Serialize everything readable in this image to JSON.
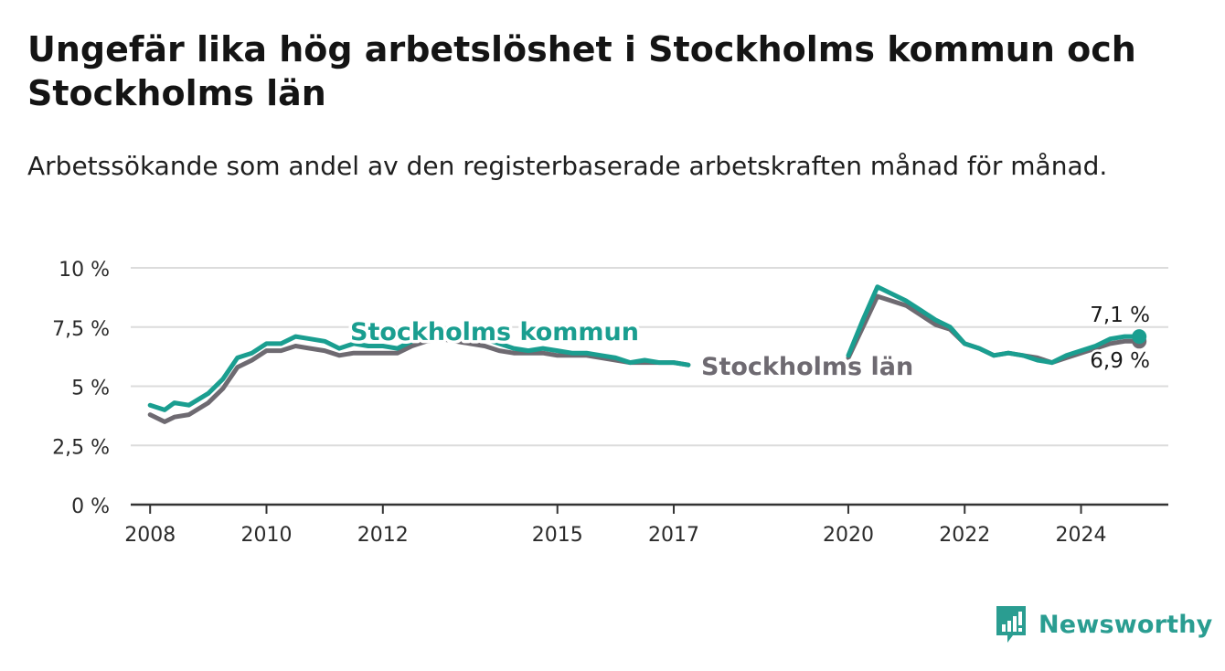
{
  "header": {
    "title": "Ungefär lika hög arbetslöshet i Stockholms kommun och Stockholms län",
    "subtitle": "Arbetssökande som andel av den registerbaserade arbetskraften månad för månad."
  },
  "colors": {
    "kommun": "#1a9e90",
    "lan": "#6e6a71",
    "grid": "#dcdcdc",
    "axis": "#333333",
    "brand": "#2a9d91"
  },
  "brand": {
    "name": "Newsworthy",
    "icon": "bar-chart-exclamation-icon"
  },
  "chart_data": {
    "type": "line",
    "y_ticks": [
      "10 %",
      "7,5 %",
      "5 %",
      "2,5 %",
      "0 %"
    ],
    "y_tick_values": [
      10,
      7.5,
      5,
      2.5,
      0
    ],
    "ylim": [
      0,
      10
    ],
    "x_ticks": [
      {
        "label": "2008",
        "value": "2008-01"
      },
      {
        "label": "2010",
        "value": "2010-01"
      },
      {
        "label": "2012",
        "value": "2012-01"
      },
      {
        "label": "2015",
        "value": "2015-01"
      },
      {
        "label": "2017",
        "value": "2017-01"
      },
      {
        "label": "2020",
        "value": "2020-01"
      },
      {
        "label": "2022",
        "value": "2022-01"
      },
      {
        "label": "2024",
        "value": "2024-01"
      }
    ],
    "xlim": [
      "2007-09",
      "2025-07"
    ],
    "grid": true,
    "series": [
      {
        "name": "Stockholms kommun",
        "color_key": "kommun",
        "end_label": "7,1 %",
        "points": [
          [
            "2008-01",
            4.2
          ],
          [
            "2008-04",
            4.0
          ],
          [
            "2008-06",
            4.3
          ],
          [
            "2008-09",
            4.2
          ],
          [
            "2009-01",
            4.7
          ],
          [
            "2009-04",
            5.3
          ],
          [
            "2009-07",
            6.2
          ],
          [
            "2009-10",
            6.4
          ],
          [
            "2010-01",
            6.8
          ],
          [
            "2010-04",
            6.8
          ],
          [
            "2010-07",
            7.1
          ],
          [
            "2010-10",
            7.0
          ],
          [
            "2011-01",
            6.9
          ],
          [
            "2011-04",
            6.6
          ],
          [
            "2011-07",
            6.8
          ],
          [
            "2011-10",
            6.7
          ],
          [
            "2012-01",
            6.7
          ],
          [
            "2012-04",
            6.6
          ],
          [
            "2012-07",
            6.9
          ],
          [
            "2012-10",
            7.1
          ],
          [
            "2013-01",
            7.3
          ],
          [
            "2013-04",
            7.2
          ],
          [
            "2013-07",
            7.1
          ],
          [
            "2013-10",
            7.0
          ],
          [
            "2014-01",
            6.8
          ],
          [
            "2014-04",
            6.6
          ],
          [
            "2014-07",
            6.5
          ],
          [
            "2014-10",
            6.6
          ],
          [
            "2015-01",
            6.5
          ],
          [
            "2015-04",
            6.4
          ],
          [
            "2015-07",
            6.4
          ],
          [
            "2015-10",
            6.3
          ],
          [
            "2016-01",
            6.2
          ],
          [
            "2016-04",
            6.0
          ],
          [
            "2016-07",
            6.1
          ],
          [
            "2016-10",
            6.0
          ],
          [
            "2017-01",
            6.0
          ],
          [
            "2017-04",
            5.9
          ],
          [
            null,
            null
          ],
          [
            "2020-01",
            6.3
          ],
          [
            "2020-04",
            7.8
          ],
          [
            "2020-07",
            9.2
          ],
          [
            "2020-10",
            8.9
          ],
          [
            "2021-01",
            8.6
          ],
          [
            "2021-04",
            8.2
          ],
          [
            "2021-07",
            7.8
          ],
          [
            "2021-10",
            7.5
          ],
          [
            "2022-01",
            6.8
          ],
          [
            "2022-04",
            6.6
          ],
          [
            "2022-07",
            6.3
          ],
          [
            "2022-10",
            6.4
          ],
          [
            "2023-01",
            6.3
          ],
          [
            "2023-04",
            6.1
          ],
          [
            "2023-07",
            6.0
          ],
          [
            "2023-10",
            6.3
          ],
          [
            "2024-01",
            6.5
          ],
          [
            "2024-04",
            6.7
          ],
          [
            "2024-07",
            7.0
          ],
          [
            "2024-10",
            7.1
          ],
          [
            "2025-01",
            7.1
          ]
        ]
      },
      {
        "name": "Stockholms län",
        "color_key": "lan",
        "end_label": "6,9 %",
        "points": [
          [
            "2008-01",
            3.8
          ],
          [
            "2008-04",
            3.5
          ],
          [
            "2008-06",
            3.7
          ],
          [
            "2008-09",
            3.8
          ],
          [
            "2009-01",
            4.3
          ],
          [
            "2009-04",
            4.9
          ],
          [
            "2009-07",
            5.8
          ],
          [
            "2009-10",
            6.1
          ],
          [
            "2010-01",
            6.5
          ],
          [
            "2010-04",
            6.5
          ],
          [
            "2010-07",
            6.7
          ],
          [
            "2010-10",
            6.6
          ],
          [
            "2011-01",
            6.5
          ],
          [
            "2011-04",
            6.3
          ],
          [
            "2011-07",
            6.4
          ],
          [
            "2011-10",
            6.4
          ],
          [
            "2012-01",
            6.4
          ],
          [
            "2012-04",
            6.4
          ],
          [
            "2012-07",
            6.7
          ],
          [
            "2012-10",
            6.9
          ],
          [
            "2013-01",
            7.0
          ],
          [
            "2013-04",
            6.9
          ],
          [
            "2013-07",
            6.8
          ],
          [
            "2013-10",
            6.7
          ],
          [
            "2014-01",
            6.5
          ],
          [
            "2014-04",
            6.4
          ],
          [
            "2014-07",
            6.4
          ],
          [
            "2014-10",
            6.4
          ],
          [
            "2015-01",
            6.3
          ],
          [
            "2015-04",
            6.3
          ],
          [
            "2015-07",
            6.3
          ],
          [
            "2015-10",
            6.2
          ],
          [
            "2016-01",
            6.1
          ],
          [
            "2016-04",
            6.0
          ],
          [
            "2016-07",
            6.0
          ],
          [
            "2016-10",
            6.0
          ],
          [
            "2017-01",
            6.0
          ],
          [
            "2017-04",
            5.9
          ],
          [
            null,
            null
          ],
          [
            "2020-01",
            6.2
          ],
          [
            "2020-04",
            7.5
          ],
          [
            "2020-07",
            8.8
          ],
          [
            "2020-10",
            8.6
          ],
          [
            "2021-01",
            8.4
          ],
          [
            "2021-04",
            8.0
          ],
          [
            "2021-07",
            7.6
          ],
          [
            "2021-10",
            7.4
          ],
          [
            "2022-01",
            6.8
          ],
          [
            "2022-04",
            6.6
          ],
          [
            "2022-07",
            6.3
          ],
          [
            "2022-10",
            6.4
          ],
          [
            "2023-01",
            6.3
          ],
          [
            "2023-04",
            6.2
          ],
          [
            "2023-07",
            6.0
          ],
          [
            "2023-10",
            6.2
          ],
          [
            "2024-01",
            6.4
          ],
          [
            "2024-04",
            6.6
          ],
          [
            "2024-07",
            6.8
          ],
          [
            "2024-10",
            6.9
          ],
          [
            "2025-01",
            6.9
          ]
        ]
      }
    ]
  }
}
